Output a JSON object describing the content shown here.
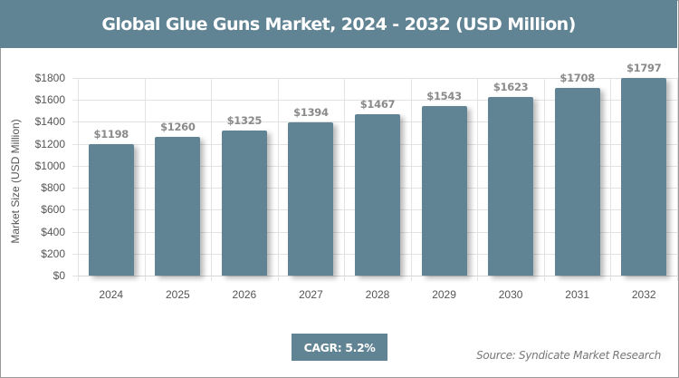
{
  "header": {
    "title": "Global Glue Guns Market, 2024 - 2032 (USD Million)"
  },
  "colors": {
    "bar": "#618494",
    "header_bg": "#618494",
    "grid": "#e3e3e3"
  },
  "footer": {
    "cagr_label": "CAGR: 5.2%",
    "source": "Source: Syndicate Market Research"
  },
  "chart_data": {
    "type": "bar",
    "title": "Global Glue Guns Market, 2024 - 2032 (USD Million)",
    "xlabel": "",
    "ylabel": "Market Size (USD Million)",
    "categories": [
      "2024",
      "2025",
      "2026",
      "2027",
      "2028",
      "2029",
      "2030",
      "2031",
      "2032"
    ],
    "values": [
      1198,
      1260,
      1325,
      1394,
      1467,
      1543,
      1623,
      1708,
      1797
    ],
    "value_labels": [
      "$1198",
      "$1260",
      "$1325",
      "$1394",
      "$1467",
      "$1543",
      "$1623",
      "$1708",
      "$1797"
    ],
    "yticks": [
      "$0",
      "$200",
      "$400",
      "$600",
      "$800",
      "$1000",
      "$1200",
      "$1400",
      "$1600",
      "$1800"
    ],
    "ytick_values": [
      0,
      200,
      400,
      600,
      800,
      1000,
      1200,
      1400,
      1600,
      1800
    ],
    "ylim": [
      0,
      1800
    ],
    "grid": true,
    "legend": null,
    "annotations": [
      "CAGR: 5.2%",
      "Source: Syndicate Market Research"
    ]
  }
}
